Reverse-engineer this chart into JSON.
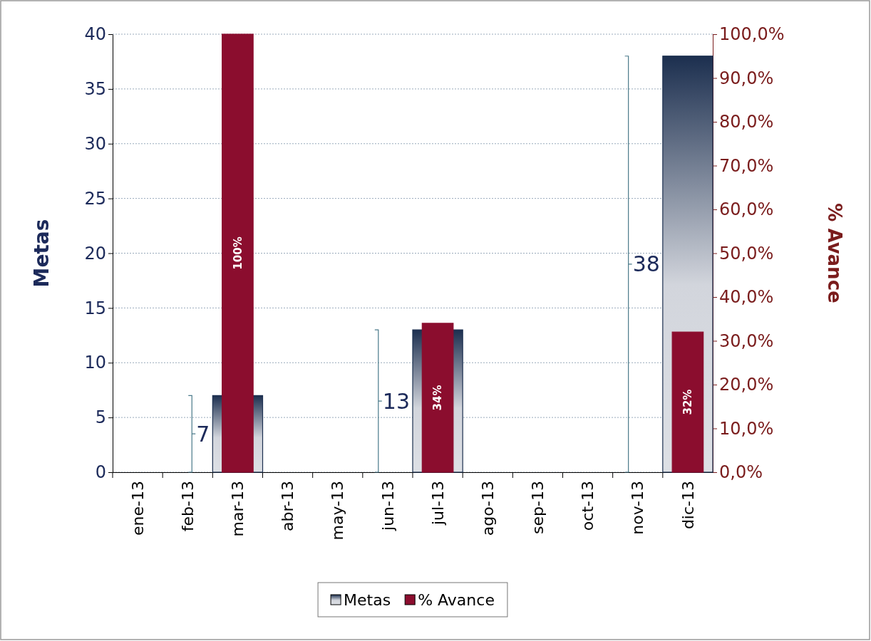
{
  "chart_data": {
    "type": "bar",
    "ylabel": "Metas",
    "y2label": "% Avance",
    "categories": [
      "ene-13",
      "feb-13",
      "mar-13",
      "abr-13",
      "may-13",
      "jun-13",
      "jul-13",
      "ago-13",
      "sep-13",
      "oct-13",
      "nov-13",
      "dic-13"
    ],
    "series": [
      {
        "name": "Metas",
        "color": "#1c2f4f",
        "values": [
          null,
          null,
          7,
          null,
          null,
          null,
          13,
          null,
          null,
          null,
          null,
          38
        ],
        "value_labels": [
          null,
          null,
          "7",
          null,
          null,
          null,
          "13",
          null,
          null,
          null,
          null,
          "38"
        ]
      },
      {
        "name": "% Avance",
        "color": "#8b0d2e",
        "axis": "y2",
        "values": [
          null,
          null,
          100,
          null,
          null,
          null,
          34,
          null,
          null,
          null,
          null,
          32
        ],
        "value_labels": [
          null,
          null,
          "100%",
          null,
          null,
          null,
          "34%",
          null,
          null,
          null,
          null,
          "32%"
        ]
      }
    ],
    "ylim": [
      0,
      40
    ],
    "yticks": [
      0,
      5,
      10,
      15,
      20,
      25,
      30,
      35,
      40
    ],
    "y2lim": [
      0,
      100
    ],
    "y2ticks": [
      {
        "value": 0,
        "label": "0,0%"
      },
      {
        "value": 10,
        "label": "10,0%"
      },
      {
        "value": 20,
        "label": "20,0%"
      },
      {
        "value": 30,
        "label": "30,0%"
      },
      {
        "value": 40,
        "label": "40,0%"
      },
      {
        "value": 50,
        "label": "50,0%"
      },
      {
        "value": 60,
        "label": "60,0%"
      },
      {
        "value": 70,
        "label": "70,0%"
      },
      {
        "value": 80,
        "label": "80,0%"
      },
      {
        "value": 90,
        "label": "90,0%"
      },
      {
        "value": 100,
        "label": "100,0%"
      }
    ],
    "grid": "y",
    "legend": "bottom"
  }
}
